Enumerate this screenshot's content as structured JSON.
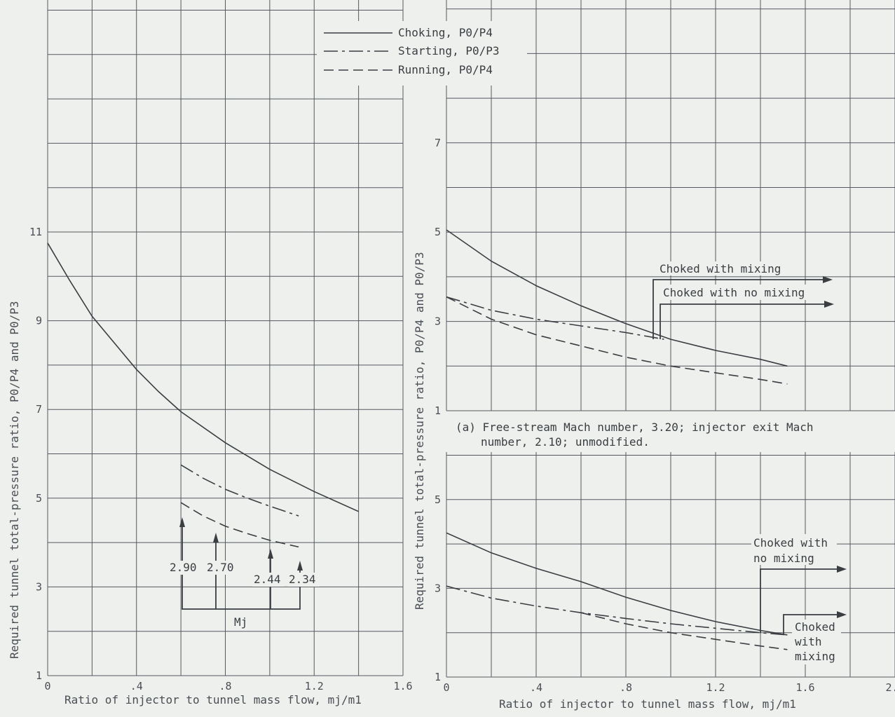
{
  "legend": [
    {
      "name": "Choking, P0/P4",
      "style": "choking"
    },
    {
      "name": "Starting, P0/P3",
      "style": "starting"
    },
    {
      "name": "Running, P0/P4",
      "style": "running"
    }
  ],
  "ylabel_left": "Required tunnel total-pressure ratio, P0/P4 and P0/P3",
  "ylabel_right": "Required tunnel total-pressure ratio, P0/P4 and P0/P3",
  "xlabel_left": "Ratio of injector to tunnel mass flow, mj/m1",
  "xlabel_right": "Ratio of injector to tunnel mass flow, mj/m1",
  "caption_a_line1": "(a) Free-stream Mach number, 3.20; injector exit Mach",
  "caption_a_line2": "number, 2.10; unmodified.",
  "mj_label": "Mj",
  "chart_data": [
    {
      "type": "line",
      "panel": "left",
      "xlim": [
        0,
        1.6
      ],
      "ylim": [
        1,
        13
      ],
      "xticks": [
        "0",
        ".4",
        ".8",
        "1.2",
        "1.6"
      ],
      "yticks": [
        "1",
        "3",
        "5",
        "7",
        "9",
        "11"
      ],
      "series": [
        {
          "name": "Choking, P0/P4",
          "style": "choking",
          "x": [
            0,
            0.1,
            0.2,
            0.3,
            0.4,
            0.5,
            0.6,
            0.8,
            1.0,
            1.2,
            1.4
          ],
          "y": [
            10.75,
            9.9,
            9.1,
            8.5,
            7.9,
            7.4,
            6.95,
            6.25,
            5.65,
            5.15,
            4.7
          ]
        },
        {
          "name": "Starting, P0/P3",
          "style": "starting",
          "x": [
            0.6,
            0.7,
            0.8,
            0.9,
            1.0,
            1.13
          ],
          "y": [
            5.75,
            5.45,
            5.2,
            5.0,
            4.82,
            4.6
          ]
        },
        {
          "name": "Running, P0/P4",
          "style": "running",
          "x": [
            0.6,
            0.7,
            0.8,
            0.9,
            1.0,
            1.13
          ],
          "y": [
            4.9,
            4.6,
            4.37,
            4.2,
            4.05,
            3.9
          ]
        }
      ],
      "annotations": [
        {
          "text": "2.90",
          "x": 0.6
        },
        {
          "text": "2.70",
          "x": 0.74
        },
        {
          "text": "2.44",
          "x": 0.99
        },
        {
          "text": "2.34",
          "x": 1.13
        }
      ]
    },
    {
      "type": "line",
      "panel": "right-top",
      "xlim": [
        0,
        2.0
      ],
      "ylim": [
        1,
        9
      ],
      "yticks": [
        "1",
        "3",
        "5",
        "7"
      ],
      "series": [
        {
          "name": "Choking, P0/P4",
          "style": "choking",
          "x": [
            0,
            0.2,
            0.4,
            0.6,
            0.8,
            1.0,
            1.2,
            1.4,
            1.52
          ],
          "y": [
            5.05,
            4.35,
            3.8,
            3.35,
            2.95,
            2.6,
            2.35,
            2.15,
            2.0
          ]
        },
        {
          "name": "Starting, P0/P3",
          "style": "starting",
          "x": [
            0,
            0.2,
            0.4,
            0.6,
            0.8,
            0.97
          ],
          "y": [
            3.55,
            3.25,
            3.05,
            2.9,
            2.75,
            2.6
          ]
        },
        {
          "name": "Running, P0/P4",
          "style": "running",
          "x": [
            0,
            0.2,
            0.4,
            0.6,
            0.8,
            1.0,
            1.2,
            1.4,
            1.52
          ],
          "y": [
            3.55,
            3.05,
            2.7,
            2.45,
            2.2,
            2.0,
            1.85,
            1.7,
            1.6
          ]
        }
      ],
      "annotations": [
        {
          "text": "Choked with mixing"
        },
        {
          "text": "Choked with no mixing"
        }
      ]
    },
    {
      "type": "line",
      "panel": "right-bottom",
      "xlim": [
        0,
        2.0
      ],
      "ylim": [
        1,
        7
      ],
      "xticks": [
        "0",
        ".4",
        ".8",
        "1.2",
        "1.6",
        "2.0"
      ],
      "yticks": [
        "1",
        "3",
        "5"
      ],
      "series": [
        {
          "name": "Choking, P0/P4",
          "style": "choking",
          "x": [
            0,
            0.2,
            0.4,
            0.6,
            0.8,
            1.0,
            1.2,
            1.4,
            1.52
          ],
          "y": [
            4.25,
            3.8,
            3.45,
            3.15,
            2.8,
            2.5,
            2.25,
            2.05,
            1.95
          ]
        },
        {
          "name": "Starting, P0/P3",
          "style": "starting",
          "x": [
            0,
            0.2,
            0.4,
            0.6,
            0.8,
            1.0,
            1.2,
            1.4,
            1.52
          ],
          "y": [
            3.05,
            2.78,
            2.6,
            2.45,
            2.32,
            2.2,
            2.1,
            2.0,
            1.95
          ]
        },
        {
          "name": "Running, P0/P4",
          "style": "running",
          "x": [
            0.6,
            0.8,
            1.0,
            1.2,
            1.4,
            1.52
          ],
          "y": [
            2.45,
            2.2,
            2.0,
            1.85,
            1.7,
            1.62
          ]
        }
      ],
      "annotations": [
        {
          "text": "Choked with no mixing"
        },
        {
          "text": "Choked with mixing"
        }
      ]
    }
  ]
}
